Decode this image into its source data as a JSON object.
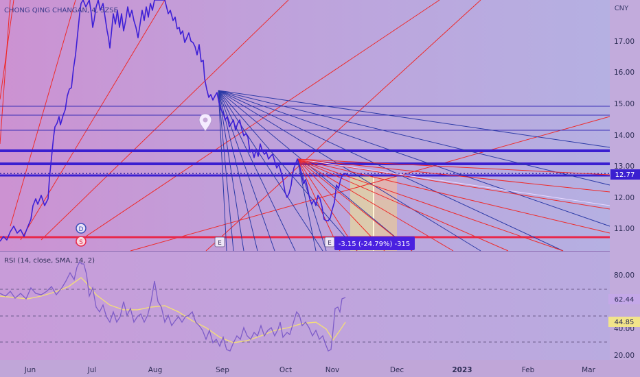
{
  "symbol_title": "CHONG QING CHANGAN, 4, SZSE",
  "currency": "CNY",
  "price_axis": [
    "17.00",
    "16.00",
    "15.00",
    "14.00",
    "13.00",
    "12.00",
    "11.00"
  ],
  "last_price": "12.77",
  "time_axis": [
    "Jun",
    "Jul",
    "Aug",
    "Sep",
    "Oct",
    "Nov",
    "Dec",
    "2023",
    "Feb",
    "Mar"
  ],
  "rsi": {
    "title": "RSI (14, close, SMA, 14, 2)",
    "axis": [
      "80.00",
      "60.00",
      "40.00",
      "20.00"
    ],
    "value": "62.44",
    "sma_value": "44.85"
  },
  "measure_label": "-3.15 (-24.79%) -315",
  "event_markers": {
    "dividend": "D",
    "split": "S",
    "earnings": "E"
  },
  "colors": {
    "background": "#c6a8d8",
    "price_line": "#3d1fd6",
    "rsi_line": "#7d5cc8",
    "rsi_sma": "#f2dc7a",
    "red_line": "#ee2a2a",
    "blue_fan": "#2b3aa6",
    "measure_box": "#efd79a"
  },
  "chart_data": [
    {
      "type": "line",
      "title": "CHONG QING CHANGAN, 4, SZSE",
      "ylabel": "CNY",
      "ylim": [
        10.5,
        17.9
      ],
      "x_ticks": [
        "Jun",
        "Jul",
        "Aug",
        "Sep",
        "Oct",
        "Nov",
        "Dec",
        "2023",
        "Feb",
        "Mar"
      ],
      "series": [
        {
          "x": [
            0.0,
            0.3,
            0.6,
            0.9,
            1.2,
            1.5,
            1.8,
            2.1,
            2.4,
            2.7,
            3.0,
            3.3,
            3.6,
            3.9,
            4.2,
            4.5,
            4.8,
            5.0,
            5.2,
            5.4,
            5.6,
            5.8
          ],
          "values": [
            10.8,
            11.5,
            13.9,
            14.6,
            16.2,
            17.8,
            18.1,
            17.3,
            18.2,
            17.5,
            16.6,
            15.3,
            14.2,
            13.9,
            13.4,
            13.1,
            12.3,
            13.2,
            12.1,
            11.4,
            12.8,
            12.77
          ]
        }
      ],
      "hlines": [
        15.0,
        14.6,
        14.2,
        13.4,
        13.1,
        12.77,
        10.7
      ],
      "annotations": [
        "-3.15 (-24.79%) -315"
      ]
    },
    {
      "type": "line",
      "title": "RSI (14, close, SMA, 14, 2)",
      "ylim": [
        15,
        95
      ],
      "series": [
        {
          "name": "RSI",
          "x": [
            0.0,
            0.5,
            1.0,
            1.3,
            1.5,
            2.0,
            2.5,
            3.0,
            3.5,
            4.0,
            4.5,
            4.9,
            5.2,
            5.4,
            5.6,
            5.8
          ],
          "values": [
            65,
            63,
            75,
            92,
            72,
            55,
            70,
            40,
            33,
            44,
            50,
            33,
            60,
            24,
            60,
            62.44
          ]
        },
        {
          "name": "SMA",
          "x": [
            0.0,
            0.5,
            1.0,
            1.5,
            2.0,
            2.5,
            3.0,
            3.5,
            4.0,
            4.5,
            4.9,
            5.2,
            5.5,
            5.8
          ],
          "values": [
            64,
            62,
            66,
            70,
            60,
            58,
            46,
            38,
            42,
            48,
            45,
            40,
            35,
            44.85
          ]
        }
      ],
      "hlines": [
        70,
        50,
        30
      ]
    }
  ]
}
